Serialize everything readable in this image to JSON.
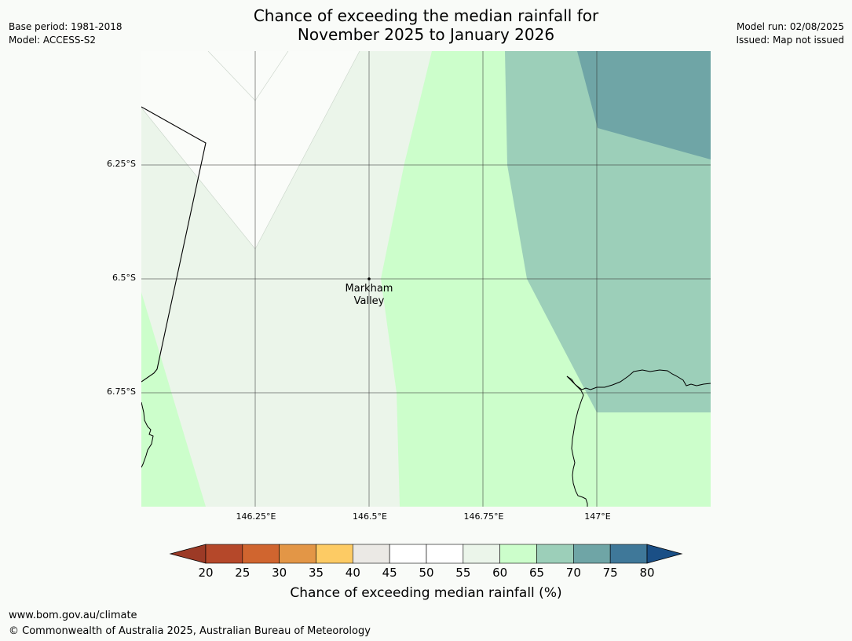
{
  "title": {
    "line1": "Chance of exceeding the median rainfall for",
    "line2": "November 2025 to January 2026"
  },
  "meta_left": {
    "base_period": "Base period: 1981-2018",
    "model": "Model: ACCESS-S2"
  },
  "meta_right": {
    "model_run": "Model run: 02/08/2025",
    "issued": "Issued: Map not issued"
  },
  "map": {
    "latitude_labels": [
      "6.25°S",
      "6.5°S",
      "6.75°S"
    ],
    "longitude_labels": [
      "146.25°E",
      "146.5°E",
      "146.75°E",
      "147°E"
    ],
    "place": {
      "name_line1": "Markham",
      "name_line2": "Valley",
      "lon": 146.5,
      "lat": -6.5
    },
    "extent": {
      "lon_min": 146.0,
      "lon_max": 147.25,
      "lat_min": -7.0,
      "lat_max": -6.0
    }
  },
  "colorbar": {
    "ticks": [
      "20",
      "25",
      "30",
      "35",
      "40",
      "45",
      "50",
      "55",
      "60",
      "65",
      "70",
      "75",
      "80"
    ],
    "colors": [
      "#b5482a",
      "#d0652f",
      "#e39646",
      "#fdcb64",
      "#ebe9e5",
      "#ffffff",
      "#ffffff",
      "#ebf5ea",
      "#ccfecb",
      "#9ccfb9",
      "#6fa5a6",
      "#3f7899"
    ],
    "under_color": "#9c3a26",
    "over_color": "#1a4f86",
    "label": "Chance of exceeding median rainfall (%)"
  },
  "footer": {
    "url": "www.bom.gov.au/climate",
    "copyright": "© Commonwealth of Australia 2025, Australian Bureau of Meteorology"
  }
}
